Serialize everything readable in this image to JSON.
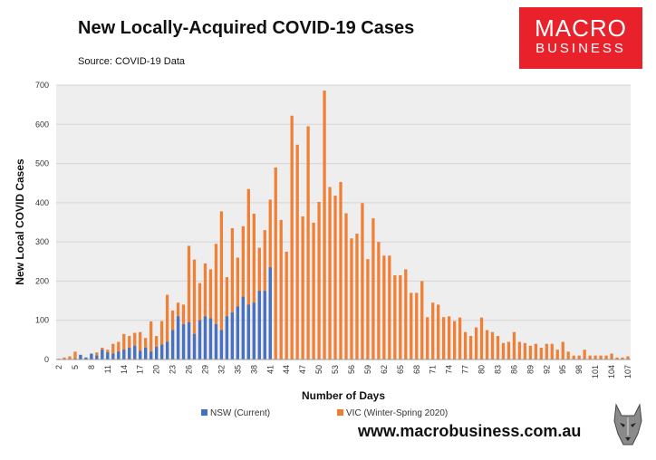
{
  "header": {
    "title": "New Locally-Acquired COVID-19 Cases",
    "subtitle": "Source: COVID-19 Data"
  },
  "logo": {
    "line1": "MACRO",
    "line2": "BUSINESS"
  },
  "footer": {
    "website": "www.macrobusiness.com.au",
    "mascot_icon": "wolf-head-icon"
  },
  "chart_data": {
    "type": "bar",
    "title": "",
    "xlabel": "Number of Days",
    "ylabel": "New Local COVID Cases",
    "ylim": [
      0,
      700
    ],
    "yticks": [
      0,
      100,
      200,
      300,
      400,
      500,
      600,
      700
    ],
    "x_start": 2,
    "x_tick_labels": [
      "2",
      "5",
      "8",
      "11",
      "14",
      "17",
      "20",
      "23",
      "26",
      "29",
      "32",
      "35",
      "38",
      "41",
      "44",
      "47",
      "50",
      "53",
      "56",
      "59",
      "62",
      "65",
      "68",
      "71",
      "74",
      "77",
      "80",
      "83",
      "86",
      "89",
      "92",
      "95",
      "98",
      "101",
      "104",
      "107"
    ],
    "legend_position": "bottom",
    "grid": true,
    "series": [
      {
        "name": "NSW (Current)",
        "color": "#4472c4",
        "values": [
          0,
          0,
          0,
          2,
          12,
          5,
          15,
          10,
          25,
          18,
          15,
          20,
          25,
          30,
          35,
          22,
          30,
          20,
          32,
          38,
          45,
          75,
          110,
          90,
          95,
          65,
          100,
          110,
          105,
          90,
          75,
          110,
          120,
          135,
          160,
          140,
          145,
          175,
          175,
          235
        ]
      },
      {
        "name": "VIC (Winter-Spring 2020)",
        "color": "#ed7d31",
        "values": [
          2,
          5,
          8,
          20,
          10,
          5,
          12,
          18,
          30,
          25,
          40,
          45,
          65,
          60,
          68,
          70,
          55,
          97,
          60,
          98,
          165,
          125,
          145,
          140,
          290,
          255,
          195,
          245,
          230,
          295,
          378,
          210,
          335,
          260,
          340,
          435,
          372,
          285,
          330,
          408,
          490,
          356,
          275,
          622,
          548,
          365,
          595,
          349,
          402,
          686,
          440,
          418,
          453,
          373,
          309,
          321,
          399,
          256,
          360,
          300,
          265,
          265,
          215,
          215,
          230,
          170,
          170,
          200,
          108,
          145,
          140,
          108,
          110,
          98,
          107,
          70,
          60,
          82,
          107,
          75,
          70,
          60,
          42,
          45,
          70,
          45,
          42,
          35,
          40,
          30,
          40,
          40,
          25,
          45,
          20,
          10,
          10,
          25,
          10,
          10,
          10,
          10,
          15,
          5,
          5,
          8
        ]
      }
    ]
  }
}
